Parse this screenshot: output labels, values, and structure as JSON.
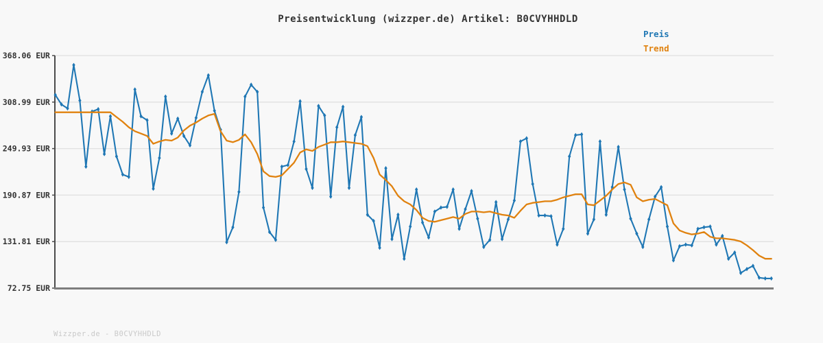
{
  "title": "Preisentwicklung (wizzper.de) Artikel: B0CVYHHDLD",
  "legend": {
    "price_label": "Preis",
    "trend_label": "Trend"
  },
  "watermark": "Wizzper.de - B0CVYHHDLD",
  "colors": {
    "price": "#1f77b4",
    "trend": "#e0820f",
    "grid": "#e0e0e0",
    "axis_left": "#4a4a4a",
    "axis_bottom": "#7d7d7d",
    "tick_label": "#333333",
    "background": "#f8f8f8",
    "watermark": "#c9c9c9"
  },
  "y_axis": {
    "unit": "EUR",
    "tick_labels": [
      "368.06 EUR",
      "308.99 EUR",
      "249.93 EUR",
      "190.87 EUR",
      "131.81 EUR",
      "72.75 EUR"
    ],
    "tick_values": [
      368.06,
      308.99,
      249.93,
      190.87,
      131.81,
      72.75
    ]
  },
  "x_axis": {
    "labels_visible": false
  },
  "chart_data": {
    "type": "line",
    "title": "Preisentwicklung (wizzper.de) Artikel: B0CVYHHDLD",
    "ylabel": "EUR",
    "ylim": [
      72.75,
      368.06
    ],
    "yticks": [
      368.06,
      308.99,
      249.93,
      190.87,
      131.81,
      72.75
    ],
    "grid": true,
    "legend_position": "top-right",
    "x_unit": "observation-index",
    "series": [
      {
        "name": "Preis",
        "color": "#1f77b4",
        "marker": "thin-diamond",
        "values": [
          318,
          306,
          301,
          356,
          311,
          227,
          297,
          300,
          243,
          291,
          240,
          217,
          214,
          325,
          291,
          286,
          199,
          238,
          316,
          269,
          288,
          266,
          254,
          289,
          322,
          343,
          298,
          274,
          131,
          150,
          195,
          316,
          331,
          322,
          175,
          144,
          134,
          227,
          229,
          259,
          310,
          224,
          200,
          304,
          292,
          189,
          277,
          303,
          200,
          267,
          290,
          166,
          158,
          124,
          225,
          135,
          166,
          110,
          151,
          198,
          156,
          137,
          170,
          175,
          176,
          198,
          148,
          173,
          196,
          161,
          125,
          134,
          182,
          135,
          160,
          184,
          259,
          263,
          205,
          165,
          165,
          164,
          128,
          148,
          240,
          267,
          268,
          142,
          160,
          259,
          166,
          201,
          252,
          198,
          161,
          142,
          125,
          160,
          189,
          201,
          151,
          108,
          126,
          128,
          127,
          148,
          150,
          151,
          128,
          139,
          110,
          118,
          92,
          97,
          101,
          86,
          85,
          85
        ]
      },
      {
        "name": "Trend",
        "color": "#e0820f",
        "marker": "none",
        "values": [
          296,
          296,
          296,
          296,
          296,
          296,
          296,
          296,
          296,
          296,
          290,
          284,
          277,
          272,
          269,
          266,
          256,
          259,
          261,
          260,
          264,
          273,
          279,
          283,
          288,
          292,
          294,
          272,
          260,
          258,
          261,
          268,
          258,
          243,
          221,
          215,
          214,
          216,
          224,
          232,
          245,
          249,
          247,
          252,
          255,
          258,
          258,
          259,
          258,
          257,
          256,
          253,
          238,
          217,
          210,
          202,
          190,
          183,
          179,
          172,
          162,
          158,
          157,
          159,
          161,
          163,
          161,
          167,
          170,
          170,
          169,
          170,
          168,
          166,
          165,
          162,
          171,
          179,
          181,
          182,
          183,
          183,
          185,
          188,
          190,
          192,
          192,
          179,
          178,
          184,
          190,
          198,
          205,
          207,
          204,
          188,
          183,
          185,
          186,
          182,
          178,
          155,
          146,
          143,
          141,
          142,
          144,
          138,
          136,
          136,
          135,
          134,
          132,
          127,
          121,
          114,
          110,
          110
        ]
      }
    ]
  }
}
